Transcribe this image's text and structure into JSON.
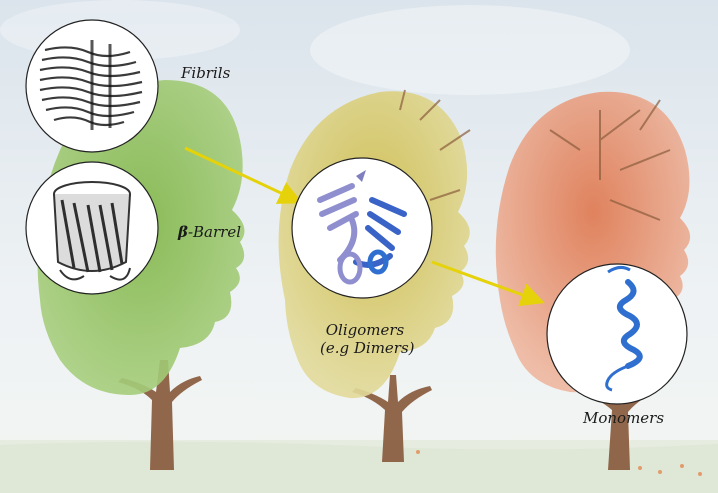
{
  "labels": {
    "fibrils": "Fibrils",
    "beta_symbol": "β",
    "beta_rest": "-Barrel",
    "oligomers_line1": "Oligomers",
    "oligomers_line2": "(e.g Dimers)",
    "monomers": "Monomers"
  },
  "colors": {
    "sky_top": "#dfe7ee",
    "sky_bottom": "#f4f6f5",
    "ground": "#e9efe4",
    "tree_green": "#8fbf5a",
    "tree_yellow": "#d4c56a",
    "tree_red": "#e0805a",
    "trunk": "#8a5c3c",
    "arrow": "#e6d20a",
    "protein_gray": "#555555",
    "protein_lavender": "#8f8fd0",
    "protein_blue": "#2f6fcf"
  },
  "icons": [
    "fibril-structure-icon",
    "beta-barrel-structure-icon",
    "dimer-structure-icon",
    "monomer-helix-icon",
    "head-tree-icon"
  ]
}
